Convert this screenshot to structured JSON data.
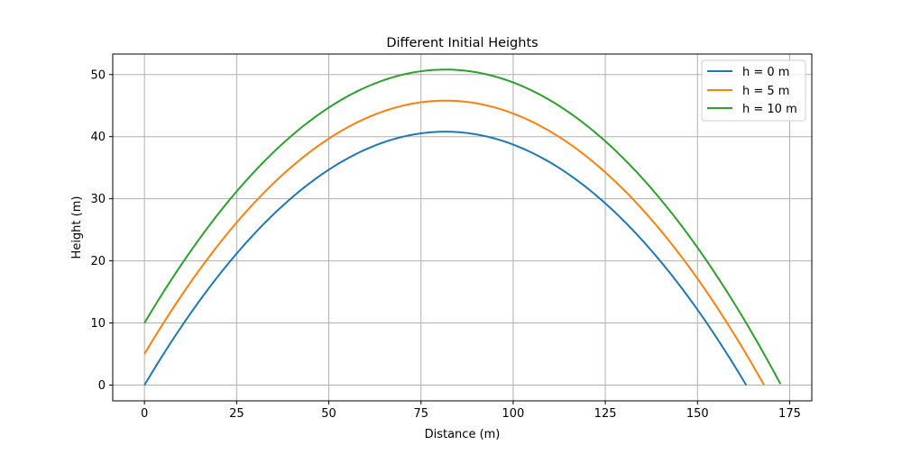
{
  "chart_data": {
    "type": "line",
    "title": "Different Initial Heights",
    "xlabel": "Distance (m)",
    "ylabel": "Height (m)",
    "xlim": [
      -8.6,
      181
    ],
    "ylim": [
      -2.54,
      53.3
    ],
    "xticks": [
      0,
      25,
      50,
      75,
      100,
      125,
      150,
      175
    ],
    "yticks": [
      0,
      10,
      20,
      30,
      40,
      50
    ],
    "grid": true,
    "legend_position": "top-right",
    "series": [
      {
        "name": "h = 0 m",
        "color": "#1f77b4",
        "h0": 0,
        "apex_x": 81.6,
        "apex_y": 40.8,
        "x_end": 163.2
      },
      {
        "name": "h = 5 m",
        "color": "#ff7f0e",
        "h0": 5,
        "apex_x": 81.6,
        "apex_y": 45.8,
        "x_end": 168.0
      },
      {
        "name": "h = 10 m",
        "color": "#2ca02c",
        "h0": 10,
        "apex_x": 81.6,
        "apex_y": 50.8,
        "x_end": 172.5
      }
    ]
  }
}
